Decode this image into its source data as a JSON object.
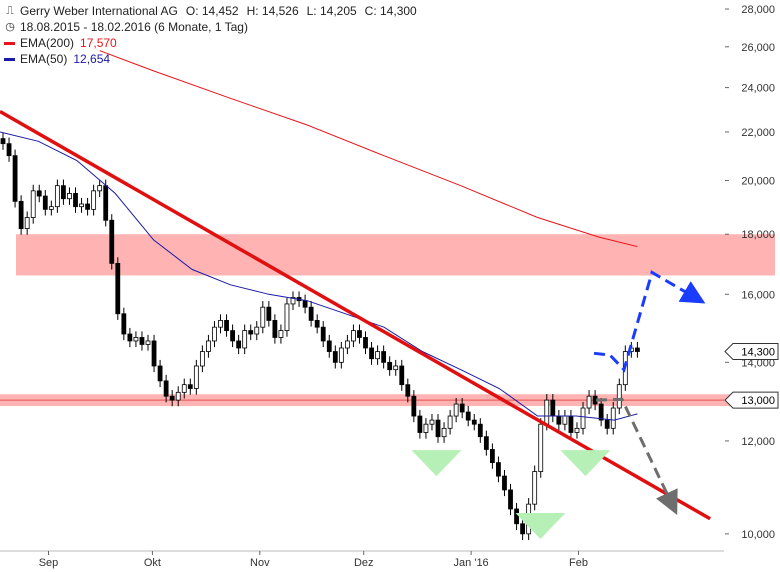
{
  "legend": {
    "title": "Gerry Weber International AG",
    "open": "O: 14,452",
    "high": "H: 14,526",
    "low": "L: 14,205",
    "close": "C: 14,300",
    "period": "18.08.2015 - 18.02.2016 (6 Monate, 1 Tag)",
    "ema200_label": "EMA(200)",
    "ema200_value": "17,570",
    "ema200_color": "#e8141a",
    "ema50_label": "EMA(50)",
    "ema50_value": "12,654",
    "ema50_color": "#1a1aa6"
  },
  "chart_data": {
    "type": "candlestick",
    "x_range": [
      "2015-08-18",
      "2016-02-18"
    ],
    "ylim": [
      9.5,
      28.5
    ],
    "y_scale": "log",
    "y_ticks": [
      "28,000",
      "26,000",
      "24,000",
      "22,000",
      "20,000",
      "18,000",
      "16,000",
      "14,000",
      "12,000",
      "10,000"
    ],
    "y_tick_values": [
      28,
      26,
      24,
      22,
      20,
      18,
      16,
      14,
      12,
      10
    ],
    "x_ticks": [
      {
        "label": "Sep",
        "date": "2015-09-01"
      },
      {
        "label": "Okt",
        "date": "2015-10-01"
      },
      {
        "label": "Nov",
        "date": "2015-11-01"
      },
      {
        "label": "Dez",
        "date": "2015-12-01"
      },
      {
        "label": "Jan '16",
        "date": "2016-01-01"
      },
      {
        "label": "Feb",
        "date": "2016-02-01"
      }
    ],
    "last_price_label": "14,300",
    "last_price": 14.3,
    "level_label": "13,000",
    "level": 13.0,
    "closes": [
      21.5,
      21.0,
      19.2,
      18.2,
      18.6,
      19.6,
      19.4,
      18.9,
      19.0,
      19.8,
      19.3,
      19.5,
      19.0,
      19.1,
      18.9,
      19.6,
      19.8,
      18.5,
      17.0,
      15.4,
      14.8,
      14.6,
      14.7,
      14.5,
      14.6,
      13.9,
      13.5,
      13.1,
      13.0,
      13.2,
      13.4,
      13.3,
      13.9,
      14.3,
      14.6,
      15.0,
      15.2,
      14.9,
      14.6,
      14.4,
      14.9,
      14.8,
      15.0,
      15.6,
      15.2,
      14.7,
      14.9,
      15.7,
      15.9,
      15.8,
      15.6,
      15.2,
      15.0,
      14.6,
      14.3,
      14.0,
      14.4,
      14.6,
      14.9,
      14.7,
      14.4,
      14.1,
      14.3,
      14.0,
      13.8,
      13.9,
      13.4,
      13.1,
      12.6,
      12.2,
      12.4,
      12.5,
      12.1,
      12.3,
      12.6,
      12.9,
      12.7,
      12.5,
      12.4,
      12.1,
      11.8,
      11.5,
      11.2,
      10.9,
      10.5,
      10.2,
      10.0,
      10.6,
      11.3,
      12.4,
      13.0,
      12.6,
      12.4,
      12.6,
      12.2,
      12.3,
      12.8,
      13.1,
      12.9,
      12.5,
      12.3,
      12.8,
      13.4,
      14.3,
      14.4,
      14.3
    ],
    "ema200": [
      [
        0.13,
        25.8
      ],
      [
        0.2,
        24.8
      ],
      [
        0.3,
        23.5
      ],
      [
        0.4,
        22.3
      ],
      [
        0.5,
        21.0
      ],
      [
        0.6,
        19.8
      ],
      [
        0.7,
        18.6
      ],
      [
        0.78,
        17.9
      ],
      [
        0.83,
        17.57
      ]
    ],
    "ema50": [
      [
        0.0,
        22.0
      ],
      [
        0.05,
        21.6
      ],
      [
        0.1,
        20.8
      ],
      [
        0.15,
        19.5
      ],
      [
        0.2,
        17.8
      ],
      [
        0.25,
        16.8
      ],
      [
        0.3,
        16.3
      ],
      [
        0.35,
        16.0
      ],
      [
        0.4,
        15.8
      ],
      [
        0.45,
        15.4
      ],
      [
        0.5,
        15.0
      ],
      [
        0.55,
        14.3
      ],
      [
        0.6,
        13.8
      ],
      [
        0.65,
        13.3
      ],
      [
        0.7,
        12.6
      ],
      [
        0.75,
        12.6
      ],
      [
        0.8,
        12.5
      ],
      [
        0.83,
        12.654
      ]
    ],
    "annotations": [
      {
        "type": "zone",
        "from": 16.6,
        "to": 18.0,
        "color": "#ffb3b3"
      },
      {
        "type": "zone",
        "from": 12.85,
        "to": 13.15,
        "color": "#ffb3b3"
      },
      {
        "type": "trendline",
        "points": [
          [
            "2015-08-18",
            22.9
          ],
          [
            "2016-03-10",
            10.3
          ]
        ],
        "color": "#e01010"
      },
      {
        "type": "triangle",
        "date": "2015-12-22",
        "value": 11.2,
        "color": "#b6f0b6"
      },
      {
        "type": "triangle",
        "date": "2016-01-21",
        "value": 9.9,
        "color": "#b6f0b6"
      },
      {
        "type": "triangle",
        "date": "2016-02-03",
        "value": 11.2,
        "color": "#b6f0b6"
      },
      {
        "type": "arrow",
        "points": [
          [
            14.25,
            14.2
          ],
          [
            13.8,
            16.7
          ],
          [
            15.9,
            15.9
          ]
        ],
        "color": "#1a3cff",
        "style": "dashed"
      },
      {
        "type": "arrow",
        "points": [
          [
            13.0,
            13.0
          ],
          [
            11.6,
            10.6
          ]
        ],
        "color": "#6e6e6e",
        "style": "dashed"
      }
    ]
  }
}
